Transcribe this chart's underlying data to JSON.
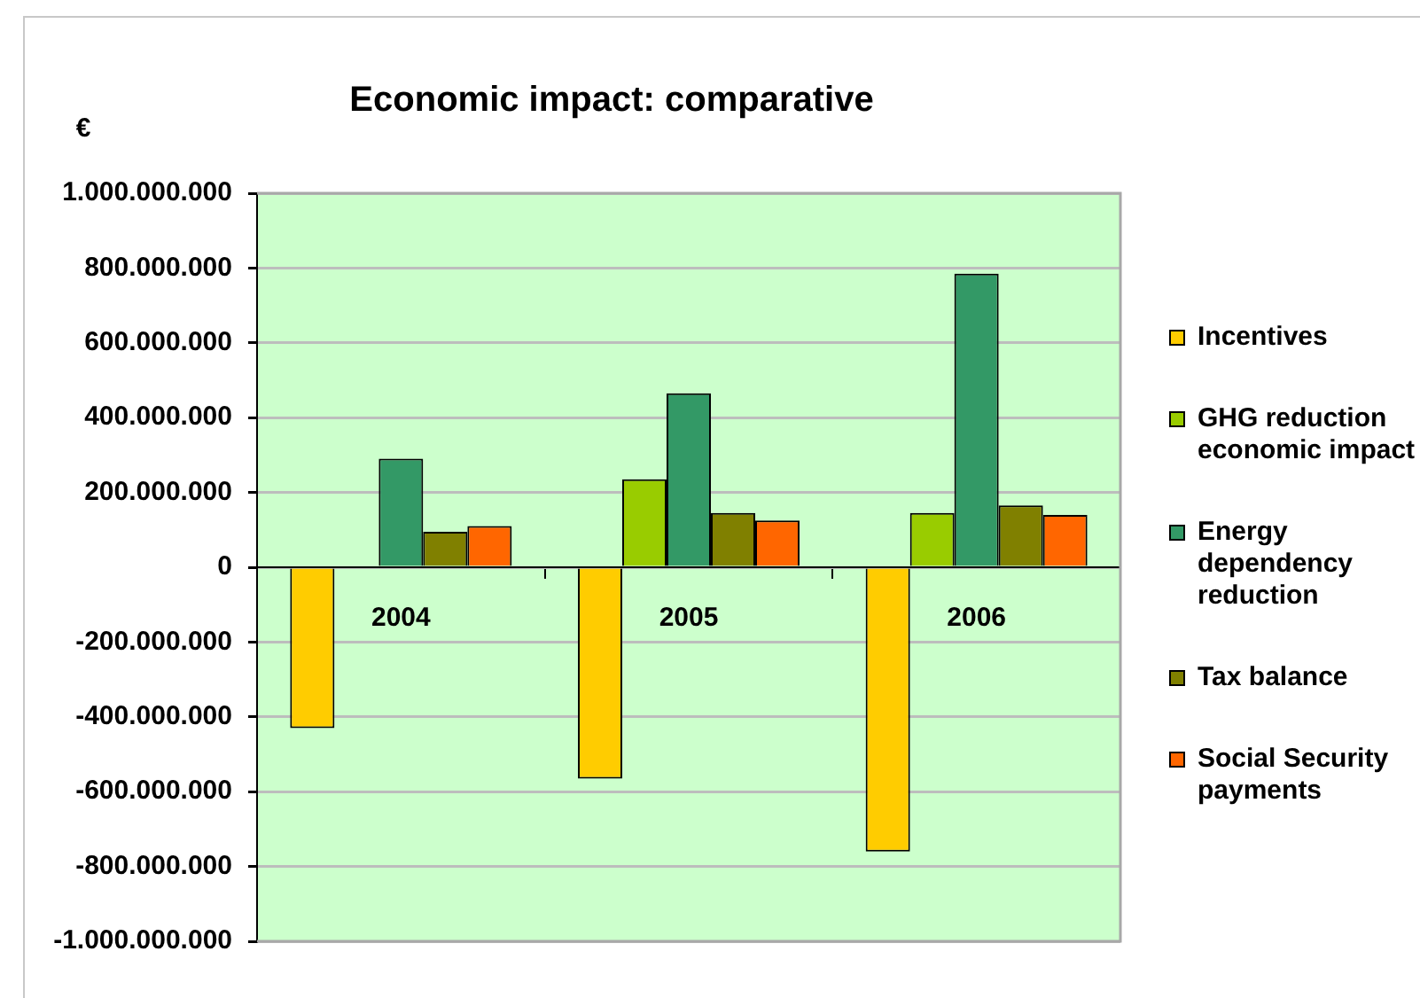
{
  "chart_data": {
    "type": "bar",
    "title": "Economic impact: comparative",
    "ylabel": "€",
    "categories": [
      "2004",
      "2005",
      "2006"
    ],
    "series": [
      {
        "name": "Incentives",
        "color": "#ffcc00",
        "values": [
          -430000000,
          -565000000,
          -760000000
        ]
      },
      {
        "name": "GHG reduction economic impact",
        "color": "#99cc00",
        "values": [
          null,
          235000000,
          145000000
        ]
      },
      {
        "name": "Energy dependency reduction",
        "color": "#339966",
        "values": [
          290000000,
          465000000,
          785000000
        ]
      },
      {
        "name": "Tax balance",
        "color": "#808000",
        "values": [
          95000000,
          145000000,
          165000000
        ]
      },
      {
        "name": "Social Security payments",
        "color": "#ff6600",
        "values": [
          110000000,
          125000000,
          140000000
        ]
      }
    ],
    "ylim": [
      -1000000000,
      1000000000
    ],
    "yticks": [
      {
        "value": -1000000000,
        "label": "-1.000.000.000"
      },
      {
        "value": -800000000,
        "label": "-800.000.000"
      },
      {
        "value": -600000000,
        "label": "-600.000.000"
      },
      {
        "value": -400000000,
        "label": "-400.000.000"
      },
      {
        "value": -200000000,
        "label": "-200.000.000"
      },
      0,
      {
        "value": 200000000,
        "label": "200.000.000"
      },
      {
        "value": 400000000,
        "label": "400.000.000"
      },
      {
        "value": 600000000,
        "label": "600.000.000"
      },
      {
        "value": 800000000,
        "label": "800.000.000"
      },
      {
        "value": 1000000000,
        "label": "1.000.000.000"
      }
    ],
    "grid": "y",
    "legend": "right"
  }
}
